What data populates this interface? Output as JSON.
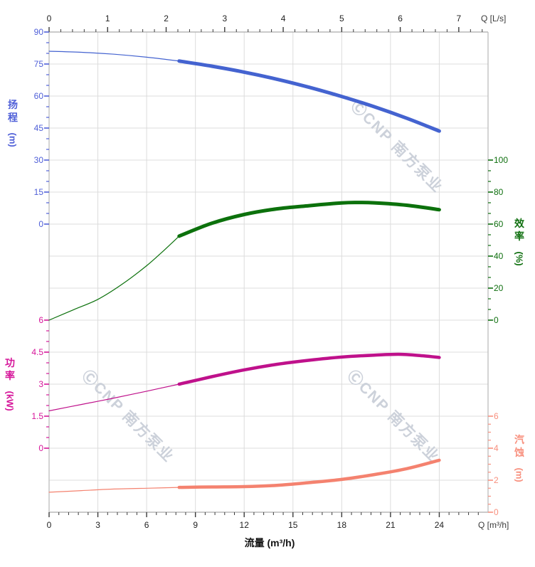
{
  "watermark": {
    "text": "ⒸCNP 南方泵业",
    "color": "#ccd1da"
  },
  "axes": {
    "top": {
      "label": "Q [L/s]",
      "ticks": [
        "0",
        "1",
        "2",
        "3",
        "4",
        "5",
        "6",
        "7"
      ]
    },
    "bottom": {
      "label": "Q [m³/h]",
      "title": "流量 (m³/h)",
      "ticks": [
        "0",
        "3",
        "6",
        "9",
        "12",
        "15",
        "18",
        "21",
        "24"
      ]
    },
    "head": {
      "title": "扬程",
      "unit": "(m)",
      "color": "#5060d8",
      "ticks": [
        "90",
        "75",
        "60",
        "45",
        "30",
        "15",
        "0"
      ]
    },
    "efficiency": {
      "title": "效率",
      "unit": "(%)",
      "color": "#0f6f0f",
      "ticks": [
        "100",
        "80",
        "60",
        "40",
        "20",
        "0"
      ]
    },
    "power": {
      "title": "功率",
      "unit": "(kW)",
      "color": "#d6169a",
      "ticks": [
        "6",
        "4.5",
        "3",
        "1.5",
        "0"
      ]
    },
    "npsh": {
      "title": "汽蚀",
      "unit": "(m)",
      "color": "#f8907e",
      "ticks": [
        "6",
        "4",
        "2",
        "0"
      ]
    }
  },
  "chart_data": {
    "type": "line",
    "xlabel": "流量 (m³/h)",
    "x_axis_bottom": {
      "unit": "m³/h",
      "range": [
        0,
        27
      ],
      "major_tick": 3
    },
    "x_axis_top": {
      "unit": "L/s",
      "range": [
        0,
        7.5
      ],
      "major_tick": 1
    },
    "grid": true,
    "legend": "axis-colored vertical titles (no legend box)",
    "duty_range_thick_from_q": 8,
    "series": [
      {
        "name": "扬程 (Head)",
        "unit": "m",
        "axis": "head",
        "color": "#4463d0",
        "axis_range": [
          0,
          90
        ],
        "points": [
          [
            0,
            81
          ],
          [
            2,
            80.5
          ],
          [
            4,
            79.6
          ],
          [
            6,
            78.2
          ],
          [
            8,
            76.4
          ],
          [
            10,
            74.0
          ],
          [
            12,
            71.2
          ],
          [
            14,
            67.9
          ],
          [
            16,
            64.1
          ],
          [
            18,
            59.8
          ],
          [
            20,
            55.0
          ],
          [
            22,
            49.6
          ],
          [
            24,
            43.6
          ]
        ]
      },
      {
        "name": "效率 (Efficiency)",
        "unit": "%",
        "axis": "efficiency",
        "color": "#0c710c",
        "axis_range": [
          0,
          100
        ],
        "points": [
          [
            0,
            0
          ],
          [
            1.5,
            6.5
          ],
          [
            3,
            13
          ],
          [
            4.5,
            22.5
          ],
          [
            6,
            34
          ],
          [
            7,
            43
          ],
          [
            8,
            52.5
          ],
          [
            10,
            60.5
          ],
          [
            12,
            66
          ],
          [
            14,
            69.5
          ],
          [
            16,
            71.5
          ],
          [
            18,
            73.2
          ],
          [
            19,
            73.5
          ],
          [
            20,
            73.3
          ],
          [
            22,
            71.8
          ],
          [
            24,
            69
          ]
        ]
      },
      {
        "name": "功率 (Power)",
        "unit": "kW",
        "axis": "power",
        "color": "#bf118b",
        "axis_range": [
          0,
          6
        ],
        "points": [
          [
            0,
            1.75
          ],
          [
            2,
            2.05
          ],
          [
            4,
            2.35
          ],
          [
            6,
            2.67
          ],
          [
            8,
            3.0
          ],
          [
            10,
            3.35
          ],
          [
            12,
            3.67
          ],
          [
            14,
            3.93
          ],
          [
            16,
            4.12
          ],
          [
            18,
            4.27
          ],
          [
            20,
            4.36
          ],
          [
            21.5,
            4.4
          ],
          [
            23,
            4.33
          ],
          [
            24,
            4.25
          ]
        ]
      },
      {
        "name": "汽蚀 (NPSH)",
        "unit": "m",
        "axis": "npsh",
        "color": "#f4826f",
        "axis_range": [
          0,
          6
        ],
        "points": [
          [
            0,
            1.25
          ],
          [
            2,
            1.35
          ],
          [
            4,
            1.45
          ],
          [
            6,
            1.5
          ],
          [
            8,
            1.55
          ],
          [
            10,
            1.58
          ],
          [
            12,
            1.6
          ],
          [
            14,
            1.68
          ],
          [
            16,
            1.85
          ],
          [
            18,
            2.05
          ],
          [
            20,
            2.35
          ],
          [
            22,
            2.72
          ],
          [
            24,
            3.25
          ]
        ]
      }
    ]
  }
}
